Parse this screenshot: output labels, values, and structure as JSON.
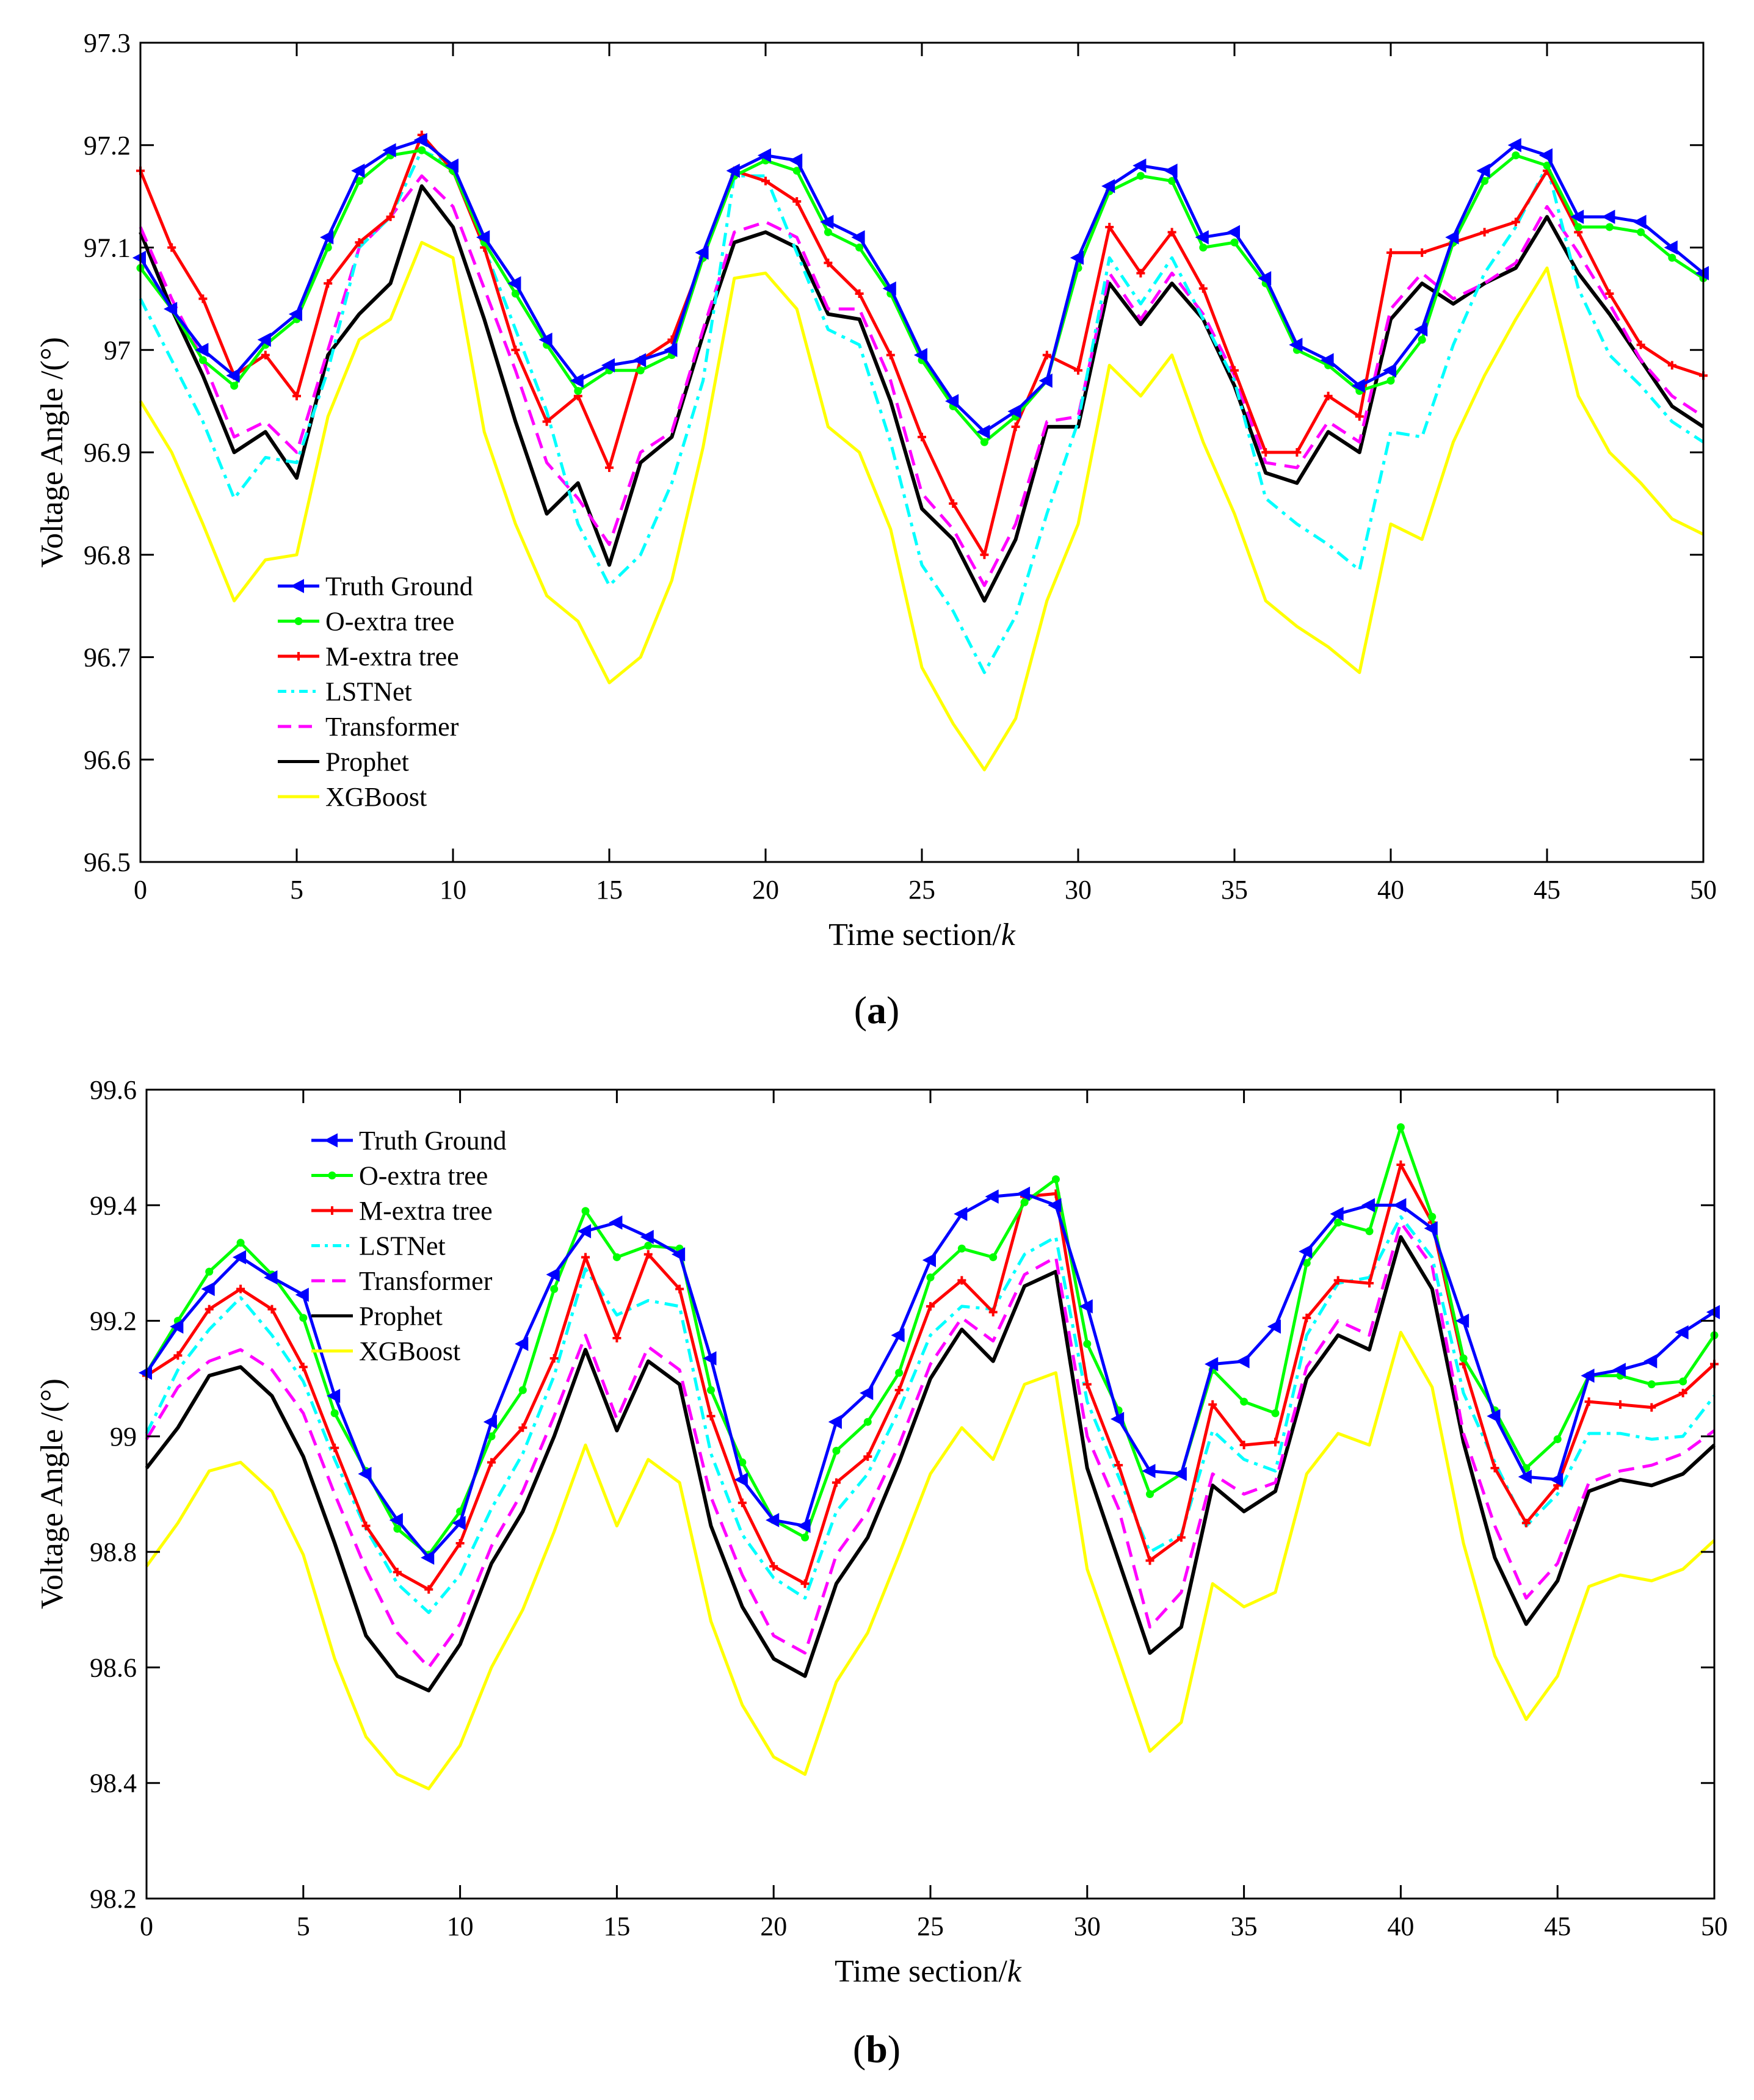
{
  "chart_data": [
    {
      "type": "line",
      "panel_label": "a",
      "xlabel": "Time section/",
      "xlabel_var": "k",
      "ylabel": "Voltage Angle /(°)",
      "xlim": [
        0,
        50
      ],
      "ylim": [
        96.5,
        97.3
      ],
      "xticks": [
        0,
        5,
        10,
        15,
        20,
        25,
        30,
        35,
        40,
        45,
        50
      ],
      "xtick_labels": [
        "0",
        "5",
        "10",
        "15",
        "20",
        "25",
        "30",
        "35",
        "40",
        "45",
        "50"
      ],
      "yticks": [
        96.5,
        96.6,
        96.7,
        96.8,
        96.9,
        97.0,
        97.1,
        97.2,
        97.3
      ],
      "ytick_labels": [
        "96.5",
        "96.6",
        "96.7",
        "96.8",
        "96.9",
        "97",
        "97.1",
        "97.2",
        "97.3"
      ],
      "legend_position": "lower-left",
      "x": [
        0,
        1,
        2,
        3,
        4,
        5,
        6,
        7,
        8,
        9,
        10,
        11,
        12,
        13,
        14,
        15,
        16,
        17,
        18,
        19,
        20,
        21,
        22,
        23,
        24,
        25,
        26,
        27,
        28,
        29,
        30,
        31,
        32,
        33,
        34,
        35,
        36,
        37,
        38,
        39,
        40,
        41,
        42,
        43,
        44,
        45,
        46,
        47,
        48,
        49,
        50
      ],
      "series": [
        {
          "name": "Truth Ground",
          "color": "#0000ff",
          "marker": "triangle-left",
          "dash": "",
          "values": [
            97.09,
            97.04,
            97.0,
            96.975,
            97.01,
            97.035,
            97.11,
            97.175,
            97.195,
            97.205,
            97.18,
            97.11,
            97.065,
            97.01,
            96.97,
            96.985,
            96.99,
            97.0,
            97.095,
            97.175,
            97.19,
            97.185,
            97.125,
            97.11,
            97.06,
            96.995,
            96.95,
            96.92,
            96.94,
            96.97,
            97.09,
            97.16,
            97.18,
            97.175,
            97.11,
            97.115,
            97.07,
            97.005,
            96.99,
            96.965,
            96.98,
            97.02,
            97.11,
            97.175,
            97.2,
            97.19,
            97.13,
            97.13,
            97.125,
            97.1,
            97.075
          ]
        },
        {
          "name": "O-extra tree",
          "color": "#00ff00",
          "marker": "circle",
          "dash": "",
          "values": [
            97.08,
            97.04,
            96.99,
            96.965,
            97.005,
            97.03,
            97.1,
            97.165,
            97.19,
            97.195,
            97.175,
            97.105,
            97.055,
            97.005,
            96.96,
            96.98,
            96.98,
            96.995,
            97.09,
            97.17,
            97.185,
            97.175,
            97.115,
            97.1,
            97.055,
            96.99,
            96.945,
            96.91,
            96.935,
            96.97,
            97.08,
            97.155,
            97.17,
            97.165,
            97.1,
            97.105,
            97.065,
            97.0,
            96.985,
            96.96,
            96.97,
            97.01,
            97.105,
            97.165,
            97.19,
            97.18,
            97.12,
            97.12,
            97.115,
            97.09,
            97.07
          ]
        },
        {
          "name": "M-extra tree",
          "color": "#ff0000",
          "marker": "plus",
          "dash": "",
          "values": [
            97.175,
            97.1,
            97.05,
            96.975,
            96.995,
            96.955,
            97.065,
            97.105,
            97.13,
            97.21,
            97.175,
            97.1,
            97.0,
            96.93,
            96.955,
            96.885,
            96.99,
            97.01,
            97.09,
            97.175,
            97.165,
            97.145,
            97.085,
            97.055,
            96.995,
            96.915,
            96.85,
            96.8,
            96.925,
            96.995,
            96.98,
            97.12,
            97.075,
            97.115,
            97.06,
            96.98,
            96.9,
            96.9,
            96.955,
            96.935,
            97.095,
            97.095,
            97.105,
            97.115,
            97.125,
            97.175,
            97.115,
            97.055,
            97.005,
            96.985,
            96.975
          ]
        },
        {
          "name": "LSTNet",
          "color": "#00ffff",
          "marker": "",
          "dash": "22,10,6,10",
          "values": [
            97.05,
            96.99,
            96.93,
            96.855,
            96.895,
            96.89,
            96.98,
            97.1,
            97.13,
            97.195,
            97.18,
            97.1,
            97.02,
            96.94,
            96.83,
            96.77,
            96.8,
            96.87,
            96.97,
            97.17,
            97.17,
            97.095,
            97.02,
            97.005,
            96.91,
            96.79,
            96.745,
            96.685,
            96.74,
            96.84,
            96.93,
            97.09,
            97.045,
            97.09,
            97.03,
            96.97,
            96.855,
            96.83,
            96.81,
            96.785,
            96.92,
            96.915,
            97.005,
            97.075,
            97.12,
            97.18,
            97.06,
            96.995,
            96.965,
            96.93,
            96.91
          ]
        },
        {
          "name": "Transformer",
          "color": "#ff00ff",
          "marker": "",
          "dash": "26,14",
          "values": [
            97.12,
            97.05,
            96.99,
            96.915,
            96.93,
            96.9,
            97.0,
            97.1,
            97.13,
            97.17,
            97.14,
            97.06,
            96.98,
            96.89,
            96.855,
            96.81,
            96.9,
            96.92,
            97.02,
            97.115,
            97.125,
            97.11,
            97.04,
            97.04,
            96.97,
            96.86,
            96.825,
            96.77,
            96.83,
            96.93,
            96.935,
            97.075,
            97.03,
            97.075,
            97.035,
            96.975,
            96.89,
            96.885,
            96.93,
            96.91,
            97.04,
            97.075,
            97.05,
            97.065,
            97.085,
            97.14,
            97.095,
            97.045,
            96.99,
            96.955,
            96.935
          ]
        },
        {
          "name": "Prophet",
          "color": "#000000",
          "marker": "",
          "dash": "",
          "values": [
            97.115,
            97.04,
            96.975,
            96.9,
            96.92,
            96.875,
            96.995,
            97.035,
            97.065,
            97.16,
            97.12,
            97.03,
            96.93,
            96.84,
            96.87,
            96.79,
            96.89,
            96.915,
            97.015,
            97.105,
            97.115,
            97.1,
            97.035,
            97.03,
            96.95,
            96.845,
            96.815,
            96.755,
            96.815,
            96.925,
            96.925,
            97.065,
            97.025,
            97.065,
            97.03,
            96.965,
            96.88,
            96.87,
            96.92,
            96.9,
            97.03,
            97.065,
            97.045,
            97.065,
            97.08,
            97.13,
            97.075,
            97.035,
            96.99,
            96.945,
            96.925
          ]
        },
        {
          "name": "XGBoost",
          "color": "#ffff00",
          "marker": "",
          "dash": "",
          "values": [
            96.95,
            96.9,
            96.83,
            96.755,
            96.795,
            96.8,
            96.935,
            97.01,
            97.03,
            97.105,
            97.09,
            96.92,
            96.83,
            96.76,
            96.735,
            96.675,
            96.7,
            96.775,
            96.905,
            97.07,
            97.075,
            97.04,
            96.925,
            96.9,
            96.825,
            96.69,
            96.635,
            96.59,
            96.64,
            96.755,
            96.83,
            96.985,
            96.955,
            96.995,
            96.91,
            96.84,
            96.755,
            96.73,
            96.71,
            96.685,
            96.83,
            96.815,
            96.91,
            96.975,
            97.03,
            97.08,
            96.955,
            96.9,
            96.87,
            96.835,
            96.82
          ]
        }
      ]
    },
    {
      "type": "line",
      "panel_label": "b",
      "xlabel": "Time section/",
      "xlabel_var": "k",
      "ylabel": "Voltage Angle /(°)",
      "xlim": [
        0,
        50
      ],
      "ylim": [
        98.2,
        99.6
      ],
      "xticks": [
        0,
        5,
        10,
        15,
        20,
        25,
        30,
        35,
        40,
        45,
        50
      ],
      "xtick_labels": [
        "0",
        "5",
        "10",
        "15",
        "20",
        "25",
        "30",
        "35",
        "40",
        "45",
        "50"
      ],
      "yticks": [
        98.2,
        98.4,
        98.6,
        98.8,
        99.0,
        99.2,
        99.4,
        99.6
      ],
      "ytick_labels": [
        "98.2",
        "98.4",
        "98.6",
        "98.8",
        "99",
        "99.2",
        "99.4",
        "99.6"
      ],
      "legend_position": "top-left",
      "x": [
        0,
        1,
        2,
        3,
        4,
        5,
        6,
        7,
        8,
        9,
        10,
        11,
        12,
        13,
        14,
        15,
        16,
        17,
        18,
        19,
        20,
        21,
        22,
        23,
        24,
        25,
        26,
        27,
        28,
        29,
        30,
        31,
        32,
        33,
        34,
        35,
        36,
        37,
        38,
        39,
        40,
        41,
        42,
        43,
        44,
        45,
        46,
        47,
        48,
        49,
        50
      ],
      "series": [
        {
          "name": "Truth Ground",
          "color": "#0000ff",
          "marker": "triangle-left",
          "dash": "",
          "values": [
            99.11,
            99.19,
            99.255,
            99.31,
            99.275,
            99.245,
            99.07,
            98.935,
            98.855,
            98.79,
            98.85,
            99.025,
            99.16,
            99.28,
            99.355,
            99.37,
            99.345,
            99.315,
            99.135,
            98.925,
            98.855,
            98.845,
            99.025,
            99.075,
            99.175,
            99.305,
            99.385,
            99.415,
            99.42,
            99.4,
            99.225,
            99.03,
            98.94,
            98.935,
            99.125,
            99.13,
            99.19,
            99.32,
            99.385,
            99.4,
            99.4,
            99.36,
            99.2,
            99.035,
            98.93,
            98.925,
            99.105,
            99.115,
            99.13,
            99.18,
            99.215
          ]
        },
        {
          "name": "O-extra tree",
          "color": "#00ff00",
          "marker": "circle",
          "dash": "",
          "values": [
            99.11,
            99.2,
            99.285,
            99.335,
            99.28,
            99.205,
            99.04,
            98.94,
            98.84,
            98.795,
            98.87,
            99.0,
            99.08,
            99.255,
            99.39,
            99.31,
            99.33,
            99.325,
            99.08,
            98.955,
            98.855,
            98.825,
            98.975,
            99.025,
            99.11,
            99.275,
            99.325,
            99.31,
            99.405,
            99.445,
            99.16,
            99.045,
            98.9,
            98.935,
            99.115,
            99.06,
            99.04,
            99.3,
            99.37,
            99.355,
            99.535,
            99.38,
            99.135,
            99.045,
            98.945,
            98.995,
            99.105,
            99.105,
            99.09,
            99.095,
            99.175
          ]
        },
        {
          "name": "M-extra tree",
          "color": "#ff0000",
          "marker": "plus",
          "dash": "",
          "values": [
            99.105,
            99.14,
            99.22,
            99.255,
            99.22,
            99.12,
            98.98,
            98.845,
            98.765,
            98.735,
            98.815,
            98.955,
            99.015,
            99.135,
            99.31,
            99.17,
            99.315,
            99.255,
            99.035,
            98.885,
            98.775,
            98.745,
            98.92,
            98.965,
            99.08,
            99.225,
            99.27,
            99.215,
            99.415,
            99.42,
            99.09,
            98.95,
            98.785,
            98.825,
            99.055,
            98.985,
            98.99,
            99.205,
            99.27,
            99.265,
            99.47,
            99.37,
            99.125,
            98.945,
            98.85,
            98.915,
            99.06,
            99.055,
            99.05,
            99.075,
            99.125
          ]
        },
        {
          "name": "LSTNet",
          "color": "#00ffff",
          "marker": "",
          "dash": "22,10,6,10",
          "values": [
            99.005,
            99.115,
            99.185,
            99.24,
            99.175,
            99.095,
            98.96,
            98.84,
            98.745,
            98.695,
            98.76,
            98.875,
            98.97,
            99.105,
            99.29,
            99.21,
            99.235,
            99.225,
            98.97,
            98.83,
            98.755,
            98.72,
            98.87,
            98.935,
            99.045,
            99.175,
            99.225,
            99.22,
            99.315,
            99.345,
            99.06,
            98.93,
            98.8,
            98.83,
            99.01,
            98.96,
            98.94,
            99.175,
            99.265,
            99.275,
            99.38,
            99.31,
            99.075,
            98.955,
            98.845,
            98.9,
            99.005,
            99.005,
            98.995,
            99.0,
            99.07
          ]
        },
        {
          "name": "Transformer",
          "color": "#ff00ff",
          "marker": "",
          "dash": "26,14",
          "values": [
            98.995,
            99.085,
            99.13,
            99.15,
            99.115,
            99.04,
            98.9,
            98.77,
            98.66,
            98.6,
            98.675,
            98.81,
            98.905,
            99.035,
            99.175,
            99.03,
            99.155,
            99.115,
            98.895,
            98.76,
            98.655,
            98.625,
            98.795,
            98.87,
            98.985,
            99.125,
            99.205,
            99.165,
            99.28,
            99.31,
            99.0,
            98.875,
            98.67,
            98.73,
            98.935,
            98.9,
            98.92,
            99.12,
            99.2,
            99.175,
            99.37,
            99.295,
            99.005,
            98.845,
            98.72,
            98.78,
            98.92,
            98.94,
            98.95,
            98.97,
            99.01
          ]
        },
        {
          "name": "Prophet",
          "color": "#000000",
          "marker": "",
          "dash": "",
          "values": [
            98.945,
            99.015,
            99.105,
            99.12,
            99.07,
            98.965,
            98.815,
            98.655,
            98.585,
            98.56,
            98.64,
            98.78,
            98.87,
            99.0,
            99.15,
            99.01,
            99.13,
            99.09,
            98.845,
            98.705,
            98.615,
            98.585,
            98.745,
            98.825,
            98.955,
            99.1,
            99.185,
            99.13,
            99.26,
            99.285,
            98.945,
            98.785,
            98.625,
            98.67,
            98.915,
            98.87,
            98.905,
            99.1,
            99.175,
            99.15,
            99.345,
            99.255,
            98.99,
            98.79,
            98.675,
            98.75,
            98.905,
            98.925,
            98.915,
            98.935,
            98.985
          ]
        },
        {
          "name": "XGBoost",
          "color": "#ffff00",
          "marker": "",
          "dash": "",
          "values": [
            98.775,
            98.85,
            98.94,
            98.955,
            98.905,
            98.795,
            98.615,
            98.48,
            98.415,
            98.39,
            98.465,
            98.6,
            98.7,
            98.835,
            98.985,
            98.845,
            98.96,
            98.92,
            98.68,
            98.535,
            98.445,
            98.415,
            98.575,
            98.66,
            98.795,
            98.935,
            99.015,
            98.96,
            99.09,
            99.11,
            98.77,
            98.615,
            98.455,
            98.505,
            98.745,
            98.705,
            98.73,
            98.935,
            99.005,
            98.985,
            99.18,
            99.085,
            98.815,
            98.62,
            98.51,
            98.585,
            98.74,
            98.76,
            98.75,
            98.77,
            98.82
          ]
        }
      ]
    }
  ]
}
